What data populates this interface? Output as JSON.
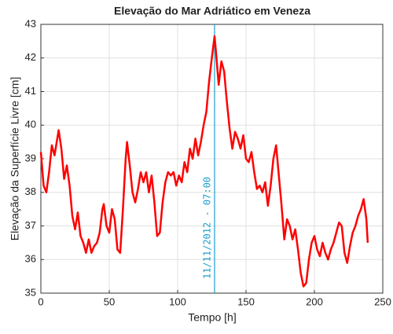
{
  "chart_data": {
    "type": "line",
    "title": "Elevação do Mar Adriático em Veneza",
    "xlabel": "Tempo [h]",
    "ylabel": "Elevação da Superfície Livre [cm]",
    "x": [
      0,
      2,
      4,
      6,
      8,
      10,
      12,
      13,
      15,
      17,
      19,
      21,
      23,
      25,
      27,
      29,
      31,
      33,
      35,
      37,
      39,
      41,
      43,
      45,
      46,
      48,
      50,
      52,
      54,
      56,
      58,
      60,
      62,
      63,
      65,
      67,
      69,
      71,
      73,
      75,
      77,
      79,
      81,
      83,
      85,
      87,
      89,
      91,
      93,
      95,
      97,
      99,
      101,
      103,
      105,
      107,
      109,
      111,
      113,
      115,
      117,
      119,
      121,
      123,
      125,
      127,
      128,
      130,
      132,
      134,
      136,
      138,
      140,
      142,
      144,
      146,
      148,
      150,
      152,
      154,
      156,
      158,
      160,
      162,
      164,
      166,
      168,
      170,
      172,
      174,
      176,
      178,
      180,
      182,
      184,
      186,
      188,
      190,
      192,
      194,
      196,
      198,
      200,
      202,
      204,
      206,
      208,
      210,
      212,
      214,
      216,
      218,
      220,
      222,
      224,
      226,
      228,
      230,
      232,
      234,
      236,
      238,
      239
    ],
    "values": [
      39.2,
      38.2,
      38.0,
      38.6,
      39.4,
      39.1,
      39.6,
      39.85,
      39.3,
      38.4,
      38.8,
      38.2,
      37.3,
      36.9,
      37.4,
      36.7,
      36.5,
      36.2,
      36.6,
      36.2,
      36.4,
      36.5,
      36.8,
      37.5,
      37.65,
      37.0,
      36.8,
      37.5,
      37.2,
      36.3,
      36.2,
      37.5,
      39.0,
      39.5,
      38.8,
      38.0,
      37.7,
      38.1,
      38.6,
      38.3,
      38.6,
      38.0,
      38.5,
      37.7,
      36.7,
      36.8,
      37.7,
      38.3,
      38.6,
      38.5,
      38.6,
      38.2,
      38.5,
      38.3,
      38.9,
      38.6,
      39.3,
      39.0,
      39.6,
      39.1,
      39.5,
      40.0,
      40.4,
      41.3,
      42.0,
      42.65,
      42.2,
      41.2,
      41.9,
      41.6,
      40.7,
      39.9,
      39.3,
      39.8,
      39.6,
      39.3,
      39.7,
      39.0,
      38.9,
      39.2,
      38.6,
      38.1,
      38.2,
      38.0,
      38.3,
      37.6,
      38.2,
      39.0,
      39.4,
      38.5,
      37.6,
      36.6,
      37.2,
      37.0,
      36.6,
      36.9,
      36.3,
      35.6,
      35.2,
      35.3,
      36.0,
      36.5,
      36.7,
      36.3,
      36.1,
      36.5,
      36.2,
      36.0,
      36.3,
      36.5,
      36.8,
      37.1,
      37.0,
      36.2,
      35.9,
      36.4,
      36.8,
      37.0,
      37.3,
      37.5,
      37.8,
      37.2,
      36.5
    ],
    "color": "#ff0000",
    "xlim": [
      0,
      250
    ],
    "xticks": [
      0,
      50,
      100,
      150,
      200,
      250
    ],
    "ylim": [
      35,
      43
    ],
    "yticks": [
      35,
      36,
      37,
      38,
      39,
      40,
      41,
      42,
      43
    ],
    "grid": true,
    "annotation": {
      "x": 127,
      "label": "11/11/2012 - 07:00",
      "color": "#1a9fcc"
    }
  }
}
